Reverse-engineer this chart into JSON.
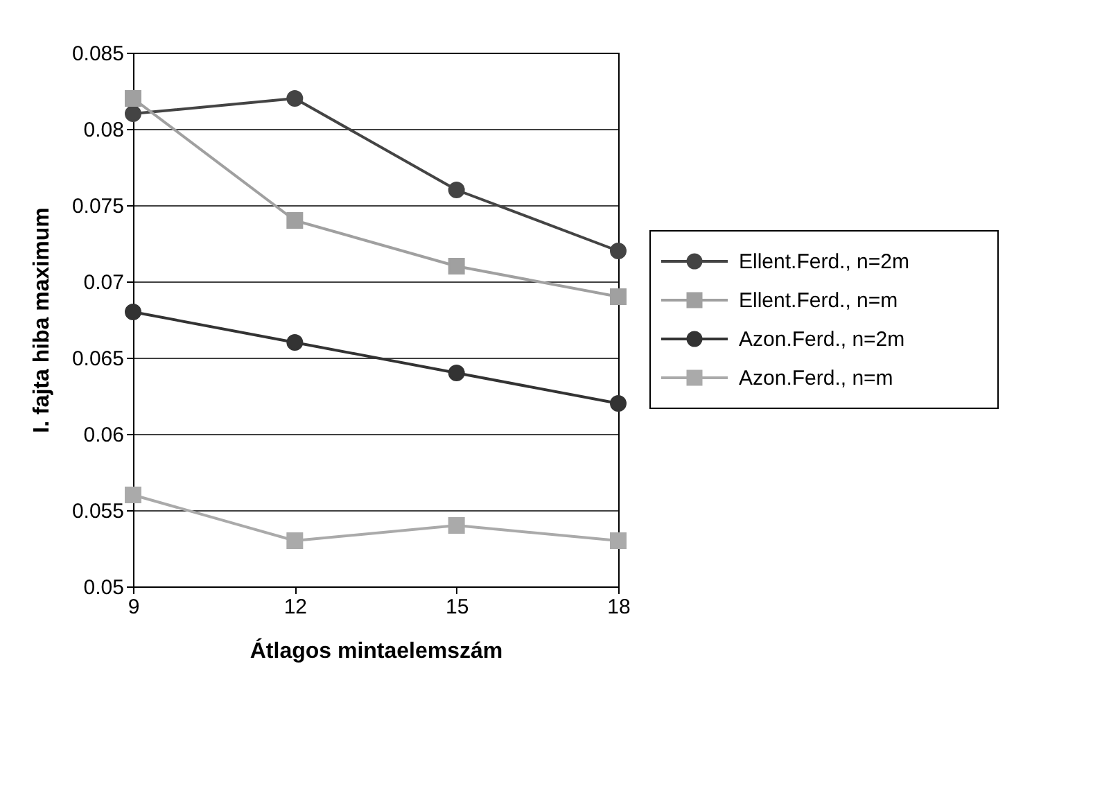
{
  "chart_data": {
    "type": "line",
    "xlabel": "Átlagos mintaelemszám",
    "ylabel": "I. fajta hiba maximum",
    "x": [
      9,
      12,
      15,
      18
    ],
    "xlim": [
      9,
      18
    ],
    "xticks": [
      9,
      12,
      15,
      18
    ],
    "ylim": [
      0.05,
      0.085
    ],
    "yticks": [
      0.05,
      0.055,
      0.06,
      0.065,
      0.07,
      0.075,
      0.08,
      0.085
    ],
    "grid": "y",
    "legend": "right",
    "series": [
      {
        "name": "Ellent.Ferd., n=2m",
        "color": "#444444",
        "marker": "circle",
        "values": [
          0.081,
          0.082,
          0.076,
          0.072
        ]
      },
      {
        "name": "Ellent.Ferd., n=m",
        "color": "#a0a0a0",
        "marker": "square",
        "values": [
          0.082,
          0.074,
          0.071,
          0.069
        ]
      },
      {
        "name": "Azon.Ferd., n=2m",
        "color": "#333333",
        "marker": "circle",
        "values": [
          0.068,
          0.066,
          0.064,
          0.062
        ]
      },
      {
        "name": "Azon.Ferd., n=m",
        "color": "#aaaaaa",
        "marker": "square",
        "values": [
          0.056,
          0.053,
          0.054,
          0.053
        ]
      }
    ]
  }
}
